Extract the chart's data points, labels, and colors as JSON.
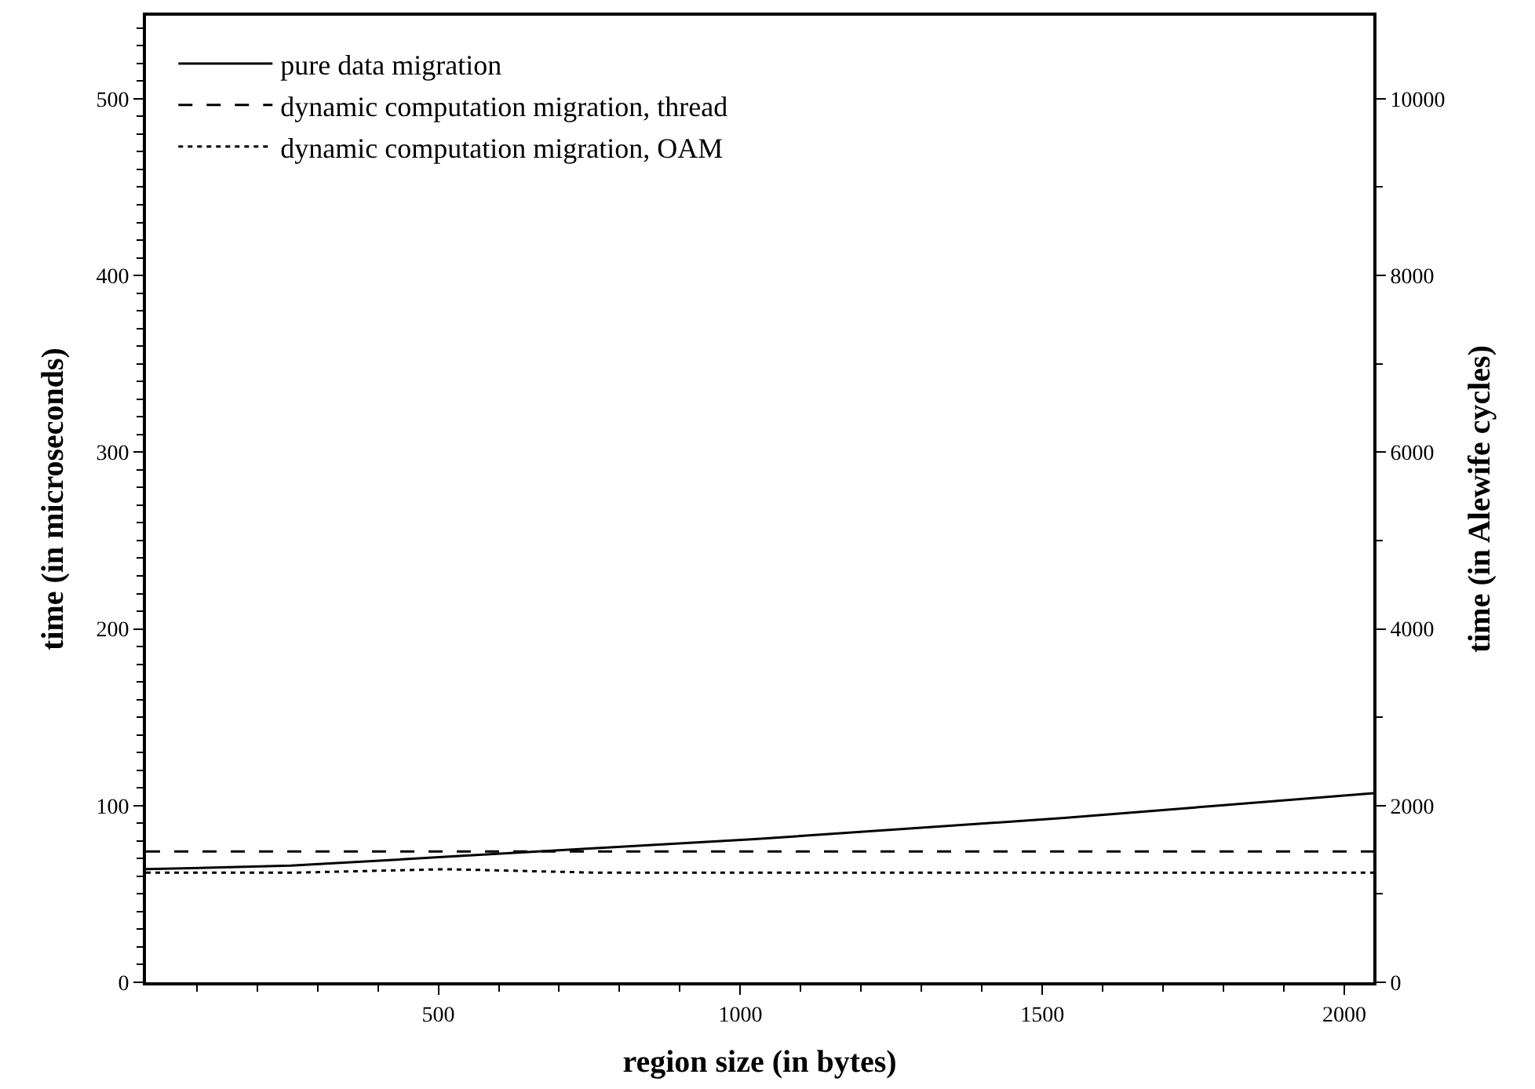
{
  "chart_data": {
    "type": "line",
    "xlabel": "region size (in bytes)",
    "ylabel": "time (in microseconds)",
    "y2label": "time (in Alewife cycles)",
    "x": [
      16,
      256,
      512,
      768,
      1024,
      1280,
      1536,
      1792,
      2048
    ],
    "series": [
      {
        "name": "pure data migration",
        "color": "#000000",
        "line_style": "solid",
        "values": [
          64,
          66,
          71,
          76,
          81,
          87,
          93,
          100,
          107
        ]
      },
      {
        "name": "dynamic computation migration, thread",
        "color": "#000000",
        "line_style": "dashed",
        "values": [
          74,
          74,
          74,
          74,
          74,
          74,
          74,
          74,
          74
        ]
      },
      {
        "name": "dynamic computation migration, OAM",
        "color": "#000000",
        "line_style": "dotted",
        "values": [
          62,
          62,
          64,
          62,
          62,
          62,
          62,
          62,
          62
        ]
      }
    ],
    "xlim": [
      16,
      2048
    ],
    "xticks": [
      500,
      1000,
      1500,
      2000
    ],
    "ylim": [
      0,
      547
    ],
    "yticks": [
      0,
      100,
      200,
      300,
      400,
      500
    ],
    "y2lim": [
      0,
      10940
    ],
    "y2ticks": [
      0,
      2000,
      4000,
      6000,
      8000,
      10000
    ],
    "legend": "top left",
    "marker": "none"
  }
}
